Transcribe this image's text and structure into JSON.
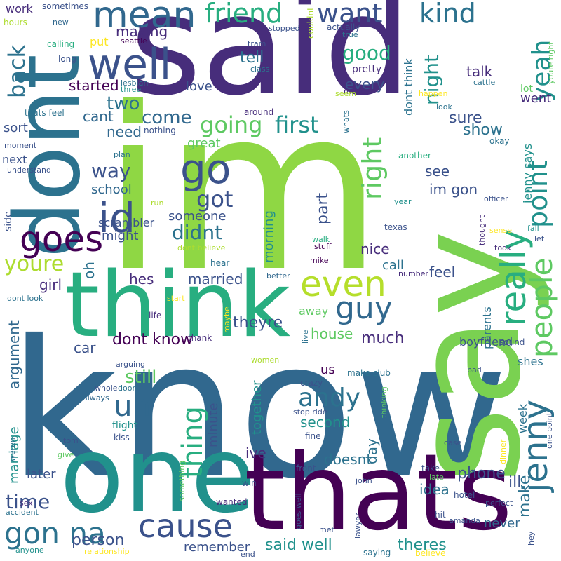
{
  "palette": {
    "dark_purple": "#440154",
    "indigo": "#472d7b",
    "blue_violet": "#3b528b",
    "steel_blue": "#2c728e",
    "teal": "#21918c",
    "sea_green": "#28ae80",
    "green": "#5ec962",
    "lime": "#addc30",
    "yellow": "#fde725"
  },
  "words": [
    {
      "text": "said"
    },
    {
      "text": "im"
    },
    {
      "text": "know"
    },
    {
      "text": "say"
    },
    {
      "text": "one"
    },
    {
      "text": "thats"
    },
    {
      "text": "think"
    },
    {
      "text": "dont"
    },
    {
      "text": "go"
    },
    {
      "text": "well"
    },
    {
      "text": "mean"
    },
    {
      "text": "id"
    },
    {
      "text": "goes"
    },
    {
      "text": "friend"
    },
    {
      "text": "want"
    },
    {
      "text": "kind"
    },
    {
      "text": "cause"
    },
    {
      "text": "guy"
    },
    {
      "text": "even"
    },
    {
      "text": "really"
    },
    {
      "text": "people"
    },
    {
      "text": "jenny"
    },
    {
      "text": "point"
    },
    {
      "text": "yeah"
    },
    {
      "text": "right"
    },
    {
      "text": "thing"
    },
    {
      "text": "uh"
    },
    {
      "text": "gon na"
    },
    {
      "text": "come"
    },
    {
      "text": "going"
    },
    {
      "text": "first"
    },
    {
      "text": "andy"
    },
    {
      "text": "youre"
    },
    {
      "text": "back"
    },
    {
      "text": "got"
    },
    {
      "text": "didnt"
    },
    {
      "text": "good"
    },
    {
      "text": "night"
    },
    {
      "text": "way"
    },
    {
      "text": "time"
    },
    {
      "text": "person"
    },
    {
      "text": "still"
    },
    {
      "text": "said well"
    },
    {
      "text": "theres"
    },
    {
      "text": "phone"
    },
    {
      "text": "make"
    },
    {
      "text": "ill"
    },
    {
      "text": "dont know"
    },
    {
      "text": "theyre"
    },
    {
      "text": "much"
    },
    {
      "text": "house"
    },
    {
      "text": "car"
    },
    {
      "text": "argument"
    },
    {
      "text": "married"
    },
    {
      "text": "hes"
    },
    {
      "text": "girl"
    },
    {
      "text": "feel"
    },
    {
      "text": "call"
    },
    {
      "text": "nice"
    },
    {
      "text": "see"
    },
    {
      "text": "im gon"
    },
    {
      "text": "part"
    },
    {
      "text": "sure"
    },
    {
      "text": "show"
    },
    {
      "text": "talk"
    },
    {
      "text": "went"
    },
    {
      "text": "every"
    },
    {
      "text": "started"
    },
    {
      "text": "two"
    },
    {
      "text": "tell"
    },
    {
      "text": "making"
    },
    {
      "text": "cant"
    },
    {
      "text": "need"
    },
    {
      "text": "love"
    },
    {
      "text": "great"
    },
    {
      "text": "someone"
    },
    {
      "text": "scrambler"
    },
    {
      "text": "school"
    },
    {
      "text": "might"
    },
    {
      "text": "oh"
    },
    {
      "text": "morning"
    },
    {
      "text": "together"
    },
    {
      "text": "second"
    },
    {
      "text": "day"
    },
    {
      "text": "doesnt"
    },
    {
      "text": "idea"
    },
    {
      "text": "never"
    },
    {
      "text": "remember"
    },
    {
      "text": "later"
    },
    {
      "text": "marriage"
    },
    {
      "text": "minute"
    },
    {
      "text": "ive"
    },
    {
      "text": "us"
    },
    {
      "text": "parents"
    },
    {
      "text": "boyfriend"
    },
    {
      "text": "shes"
    },
    {
      "text": "week"
    },
    {
      "text": "jenny says"
    },
    {
      "text": "dont think"
    },
    {
      "text": "away"
    },
    {
      "text": "sort"
    },
    {
      "text": "next"
    },
    {
      "text": "side"
    },
    {
      "text": "put"
    },
    {
      "text": "work"
    },
    {
      "text": "sometimes"
    },
    {
      "text": "hours"
    },
    {
      "text": "new"
    },
    {
      "text": "seattle"
    },
    {
      "text": "calling"
    },
    {
      "text": "long"
    },
    {
      "text": "lesbian"
    },
    {
      "text": "three"
    },
    {
      "text": "thats feel"
    },
    {
      "text": "moment"
    },
    {
      "text": "nothing"
    },
    {
      "text": "plan"
    },
    {
      "text": "understand"
    },
    {
      "text": "stopped"
    },
    {
      "text": "tram"
    },
    {
      "text": "couldnt"
    },
    {
      "text": "actually"
    },
    {
      "text": "true"
    },
    {
      "text": "class"
    },
    {
      "text": "pretty"
    },
    {
      "text": "money"
    },
    {
      "text": "happen"
    },
    {
      "text": "cattle"
    },
    {
      "text": "lot"
    },
    {
      "text": "youre right"
    },
    {
      "text": "look"
    },
    {
      "text": "seem"
    },
    {
      "text": "whats"
    },
    {
      "text": "around"
    },
    {
      "text": "okay"
    },
    {
      "text": "another"
    },
    {
      "text": "year"
    },
    {
      "text": "texas"
    },
    {
      "text": "officer"
    },
    {
      "text": "fall"
    },
    {
      "text": "sense"
    },
    {
      "text": "took"
    },
    {
      "text": "let"
    },
    {
      "text": "thought"
    },
    {
      "text": "run"
    },
    {
      "text": "dont believe"
    },
    {
      "text": "walk"
    },
    {
      "text": "stuff"
    },
    {
      "text": "mike"
    },
    {
      "text": "hear"
    },
    {
      "text": "better"
    },
    {
      "text": "number"
    },
    {
      "text": "start"
    },
    {
      "text": "dont look"
    },
    {
      "text": "life"
    },
    {
      "text": "thank"
    },
    {
      "text": "maybe"
    },
    {
      "text": "live"
    },
    {
      "text": "women"
    },
    {
      "text": "arguing"
    },
    {
      "text": "whole"
    },
    {
      "text": "door"
    },
    {
      "text": "always"
    },
    {
      "text": "crazy"
    },
    {
      "text": "make club"
    },
    {
      "text": "flight"
    },
    {
      "text": "kiss"
    },
    {
      "text": "tom"
    },
    {
      "text": "weren"
    },
    {
      "text": "give"
    },
    {
      "text": "stop ride"
    },
    {
      "text": "fine"
    },
    {
      "text": "thinking"
    },
    {
      "text": "case"
    },
    {
      "text": "dinner"
    },
    {
      "text": "one point"
    },
    {
      "text": "bad"
    },
    {
      "text": "sound"
    },
    {
      "text": "front"
    },
    {
      "text": "john"
    },
    {
      "text": "take"
    },
    {
      "text": "late"
    },
    {
      "text": "hotel"
    },
    {
      "text": "perfect"
    },
    {
      "text": "something"
    },
    {
      "text": "sex"
    },
    {
      "text": "win"
    },
    {
      "text": "wanted"
    },
    {
      "text": "goes well"
    },
    {
      "text": "accident"
    },
    {
      "text": "anyone"
    },
    {
      "text": "relationship"
    },
    {
      "text": "lawyer"
    },
    {
      "text": "met"
    },
    {
      "text": "end"
    },
    {
      "text": "saying"
    },
    {
      "text": "hit"
    },
    {
      "text": "amanda"
    },
    {
      "text": "believe"
    },
    {
      "text": "hey"
    }
  ]
}
